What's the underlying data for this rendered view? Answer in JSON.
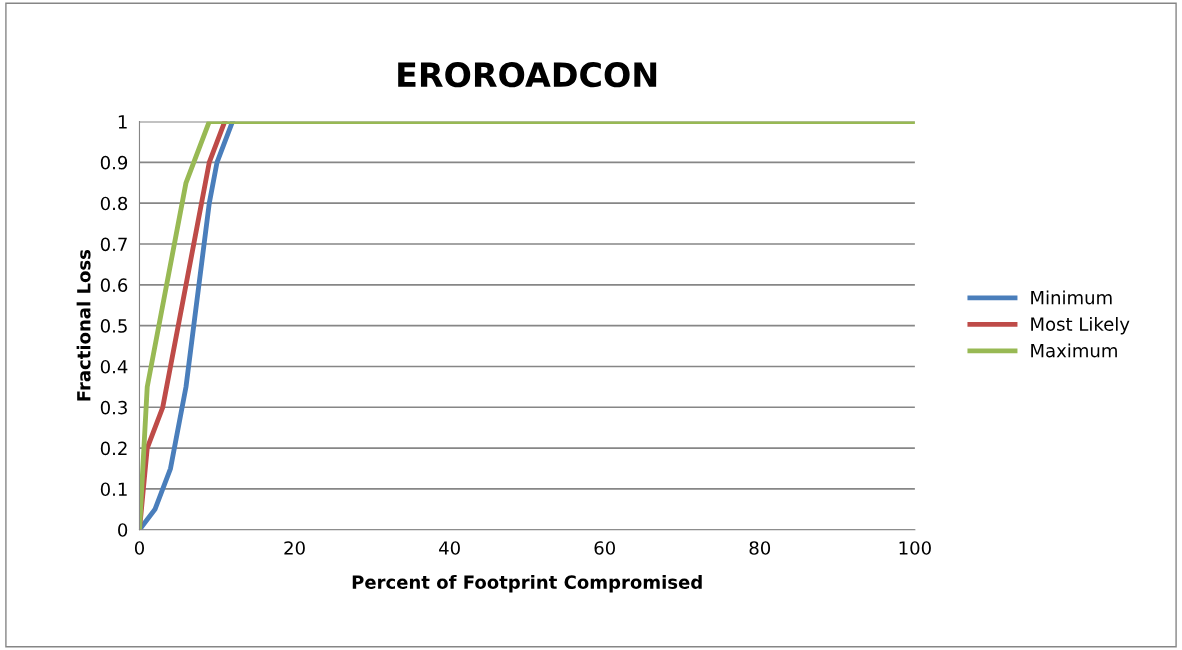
{
  "chart_data": {
    "type": "line",
    "title": "EROROADCON",
    "xlabel": "Percent of Footprint Compromised",
    "ylabel": "Fractional Loss",
    "xlim": [
      0,
      100
    ],
    "xticks": [
      0,
      20,
      40,
      60,
      80,
      100
    ],
    "ylim": [
      0,
      1
    ],
    "yticks": [
      0,
      0.1,
      0.2,
      0.3,
      0.4,
      0.5,
      0.6,
      0.7,
      0.8,
      0.9,
      1
    ],
    "grid": "y",
    "legend": "right",
    "marker": "none",
    "line_style": "solid",
    "series": [
      {
        "name": "Minimum",
        "color": "#4a7ebb",
        "x": [
          0,
          2,
          4,
          6,
          9,
          10,
          12
        ],
        "values": [
          0,
          0.05,
          0.15,
          0.35,
          0.8,
          0.9,
          1
        ]
      },
      {
        "name": "Most Likely",
        "color": "#be4b48",
        "x": [
          0,
          1,
          3,
          9,
          11
        ],
        "values": [
          0,
          0.2,
          0.3,
          0.9,
          1
        ]
      },
      {
        "name": "Maximum",
        "color": "#98b954",
        "x": [
          0,
          1,
          6,
          9,
          100
        ],
        "values": [
          0,
          0.35,
          0.85,
          1,
          1
        ]
      }
    ]
  }
}
